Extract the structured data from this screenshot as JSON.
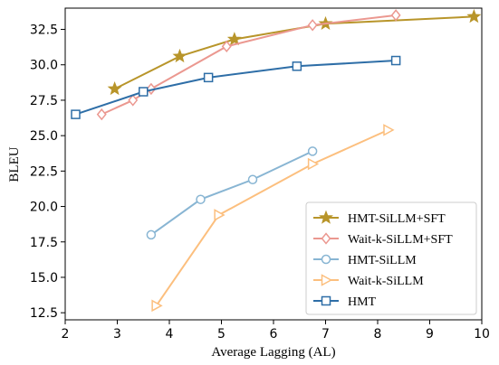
{
  "chart_data": {
    "type": "line",
    "xlabel": "Average Lagging (AL)",
    "ylabel": "BLEU",
    "xlim": [
      2,
      10
    ],
    "ylim": [
      12.0,
      34.0
    ],
    "xticks": [
      2,
      3,
      4,
      5,
      6,
      7,
      8,
      9,
      10
    ],
    "yticks": [
      12.5,
      15.0,
      17.5,
      20.0,
      22.5,
      25.0,
      27.5,
      30.0,
      32.5
    ],
    "grid": false,
    "legend_position": "lower-right",
    "series": [
      {
        "name": "HMT-SiLLM+SFT",
        "color": "#b8952a",
        "marker": "star",
        "points": [
          [
            2.95,
            28.3
          ],
          [
            4.2,
            30.6
          ],
          [
            5.25,
            31.8
          ],
          [
            7.0,
            32.9
          ],
          [
            9.85,
            33.4
          ]
        ]
      },
      {
        "name": "Wait-k-SiLLM+SFT",
        "color": "#eb9890",
        "marker": "diamond",
        "points": [
          [
            2.7,
            26.5
          ],
          [
            3.3,
            27.5
          ],
          [
            3.65,
            28.3
          ],
          [
            5.1,
            31.3
          ],
          [
            6.75,
            32.8
          ],
          [
            8.35,
            33.5
          ]
        ]
      },
      {
        "name": "HMT-SiLLM",
        "color": "#88b5d3",
        "marker": "circle",
        "points": [
          [
            3.65,
            18.0
          ],
          [
            4.6,
            20.5
          ],
          [
            5.6,
            21.9
          ],
          [
            6.75,
            23.9
          ]
        ]
      },
      {
        "name": "Wait-k-SiLLM",
        "color": "#fcbf7e",
        "marker": "triangle-right",
        "points": [
          [
            3.75,
            13.0
          ],
          [
            4.95,
            19.4
          ],
          [
            6.75,
            23.0
          ],
          [
            8.2,
            25.4
          ]
        ]
      },
      {
        "name": "HMT",
        "color": "#2e6ea7",
        "marker": "square",
        "points": [
          [
            2.2,
            26.5
          ],
          [
            3.5,
            28.1
          ],
          [
            4.75,
            29.1
          ],
          [
            6.45,
            29.9
          ],
          [
            8.35,
            30.3
          ]
        ]
      }
    ]
  }
}
